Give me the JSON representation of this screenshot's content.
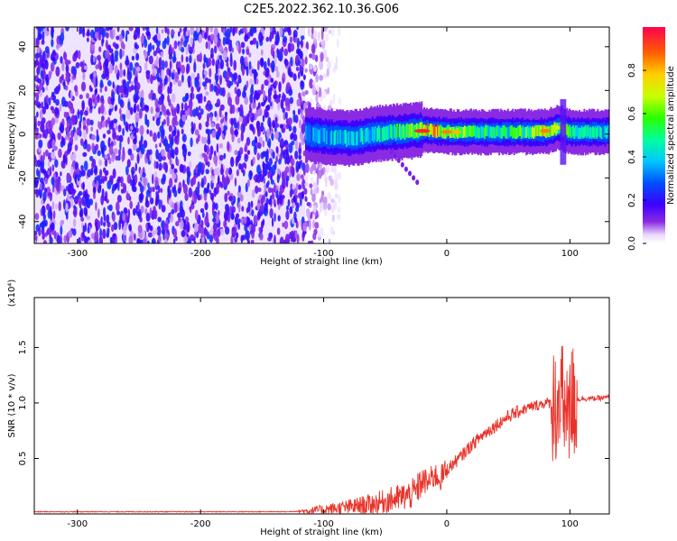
{
  "figure_title": "C2E5.2022.362.10.36.G06",
  "chart_data": [
    {
      "type": "heatmap",
      "title": "",
      "xlabel": "Height of straight line (km)",
      "ylabel": "Frequency (Hz)",
      "xlim": [
        -335,
        132
      ],
      "ylim": [
        -50,
        49
      ],
      "xticks": [
        "-300",
        "-200",
        "-100",
        "0",
        "100"
      ],
      "xtick_values": [
        -300,
        -200,
        -100,
        0,
        100
      ],
      "yticks": [
        "-40",
        "-20",
        "0",
        "20",
        "40"
      ],
      "ytick_values": [
        -40,
        -20,
        0,
        20,
        40
      ],
      "colorbar": {
        "label": "Normalized spectral amplitude",
        "ticks": [
          "0.0",
          "0.2",
          "0.4",
          "0.6",
          "0.8"
        ],
        "tick_values": [
          0.0,
          0.2,
          0.4,
          0.6,
          0.8
        ],
        "range": [
          0,
          1
        ],
        "colormap": "rainbow (purple to red)"
      },
      "regions": [
        {
          "x_range": [
            -335,
            -115
          ],
          "description": "broadband noise, amplitude 0.05-0.25 across all frequencies"
        },
        {
          "x_range": [
            -115,
            -100
          ],
          "description": "noise fading out"
        },
        {
          "x_range": [
            -115,
            132
          ],
          "description": "narrow signal band near 0 Hz, amplitude up to ~1.0"
        }
      ],
      "signal_band": {
        "x": [
          -115,
          -100,
          -80,
          -60,
          -40,
          -20,
          0,
          20,
          40,
          60,
          80,
          90,
          100,
          110,
          132
        ],
        "center_hz": [
          0,
          -1,
          -2,
          0,
          1,
          2,
          1,
          1,
          1,
          1,
          1,
          3,
          1,
          1,
          1
        ],
        "peak_amplitude": [
          0.4,
          0.45,
          0.5,
          0.5,
          0.6,
          0.95,
          0.9,
          0.65,
          0.6,
          0.65,
          0.85,
          0.7,
          0.6,
          0.55,
          0.5
        ]
      }
    },
    {
      "type": "line",
      "title": "",
      "xlabel": "Height of straight line (km)",
      "ylabel": "SNR (10 * v/v)",
      "yscale_label": "(x10⁴)",
      "xlim": [
        -335,
        132
      ],
      "ylim": [
        0,
        1.95
      ],
      "xticks": [
        "-300",
        "-200",
        "-100",
        "0",
        "100"
      ],
      "xtick_values": [
        -300,
        -200,
        -100,
        0,
        100
      ],
      "yticks": [
        "0.5",
        "1.0",
        "1.5"
      ],
      "ytick_values": [
        0.5,
        1.0,
        1.5
      ],
      "series": [
        {
          "color": "#e8332a",
          "x": [
            -335,
            -300,
            -200,
            -130,
            -110,
            -100,
            -80,
            -60,
            -40,
            -30,
            -25,
            -20,
            -15,
            -10,
            -5,
            0,
            10,
            20,
            30,
            40,
            50,
            60,
            70,
            80,
            85,
            90,
            95,
            98,
            100,
            103,
            106,
            110,
            120,
            132
          ],
          "y": [
            0.02,
            0.02,
            0.02,
            0.02,
            0.03,
            0.04,
            0.06,
            0.09,
            0.14,
            0.17,
            0.2,
            0.3,
            0.28,
            0.35,
            0.32,
            0.4,
            0.5,
            0.62,
            0.72,
            0.8,
            0.88,
            0.93,
            0.97,
            1.0,
            1.0,
            0.98,
            1.0,
            1.02,
            1.0,
            1.02,
            1.03,
            1.04,
            1.04,
            1.05
          ]
        }
      ]
    }
  ]
}
